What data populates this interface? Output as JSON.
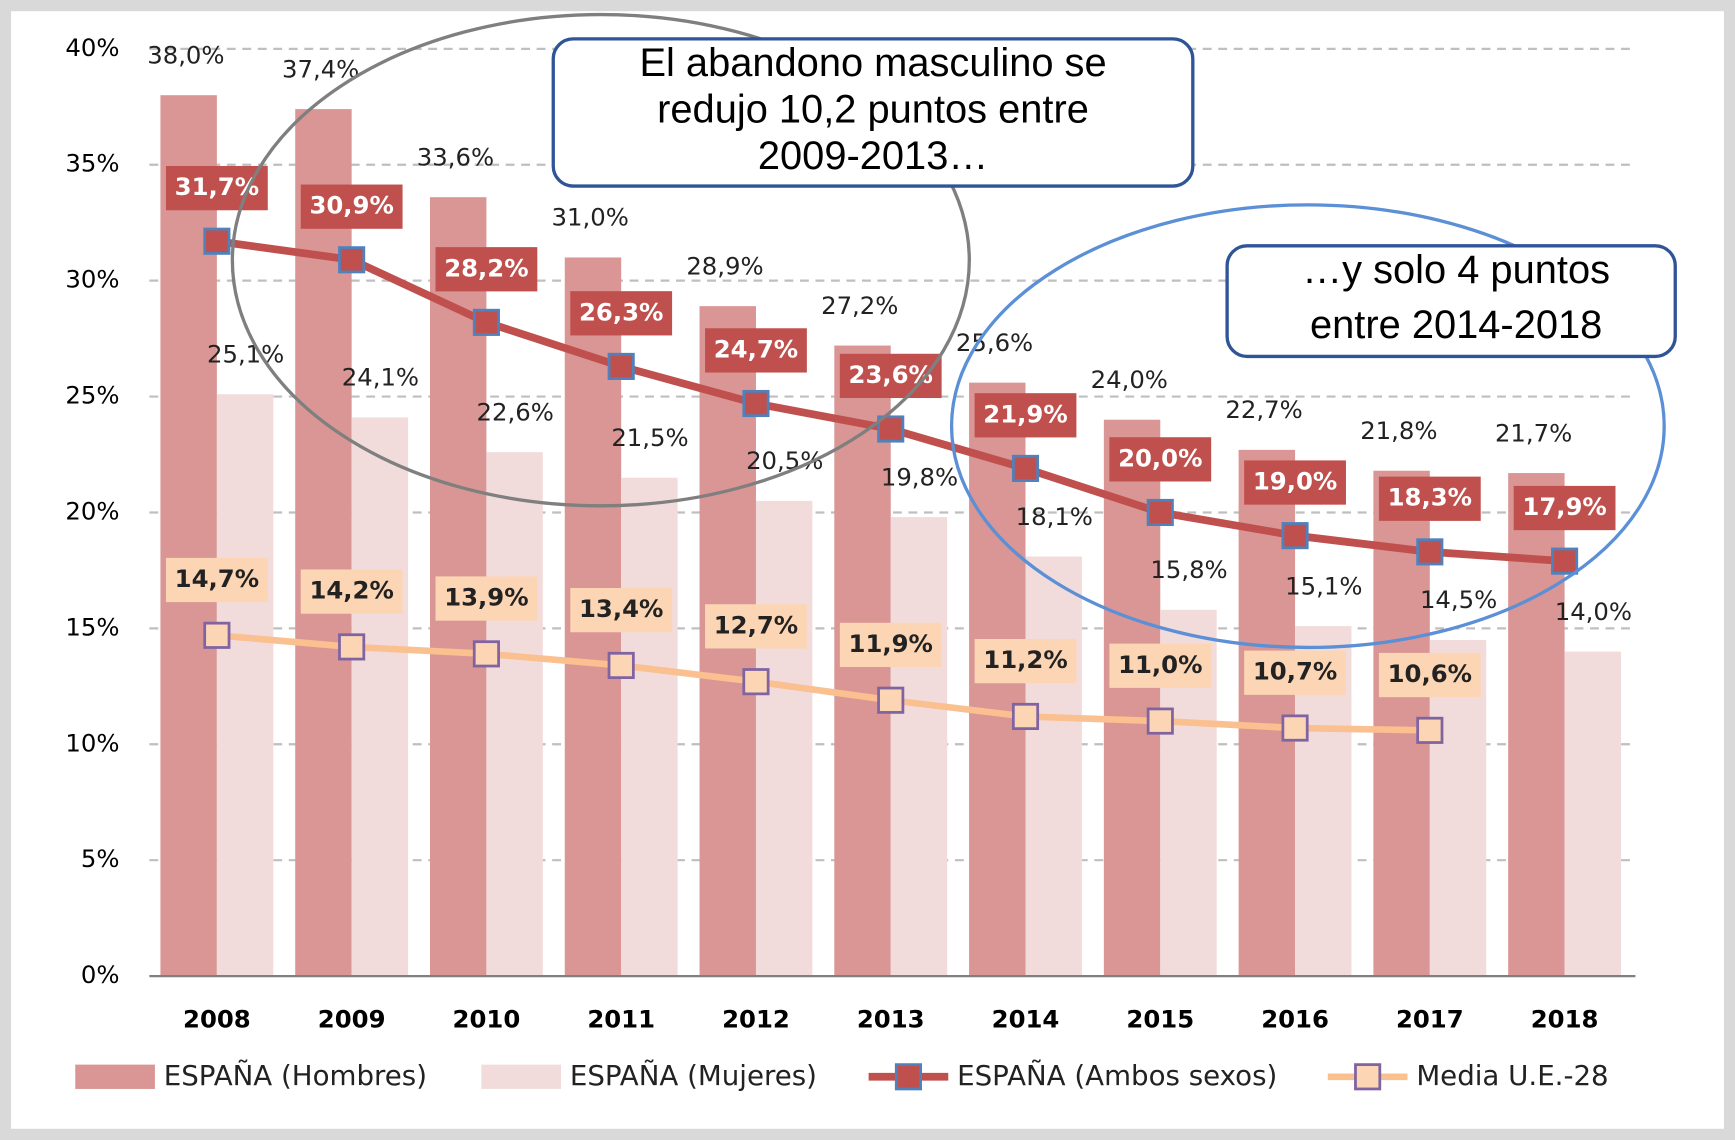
{
  "chart_data": {
    "type": "bar_line",
    "categories": [
      "2008",
      "2009",
      "2010",
      "2011",
      "2012",
      "2013",
      "2014",
      "2015",
      "2016",
      "2017",
      "2018"
    ],
    "series": [
      {
        "name": "ESPAÑA (Hombres)",
        "kind": "bar",
        "color": "#d99694",
        "values": [
          38.0,
          37.4,
          33.6,
          31.0,
          28.9,
          27.2,
          25.6,
          24.0,
          22.7,
          21.8,
          21.7
        ],
        "value_labels": [
          "38,0%",
          "37,4%",
          "33,6%",
          "31,0%",
          "28,9%",
          "27,2%",
          "25,6%",
          "24,0%",
          "22,7%",
          "21,8%",
          "21,7%"
        ]
      },
      {
        "name": "ESPAÑA (Mujeres)",
        "kind": "bar",
        "color": "#f2dcdb",
        "values": [
          25.1,
          24.1,
          22.6,
          21.5,
          20.5,
          19.8,
          18.1,
          15.8,
          15.1,
          14.5,
          14.0
        ],
        "value_labels": [
          "25,1%",
          "24,1%",
          "22,6%",
          "21,5%",
          "20,5%",
          "19,8%",
          "18,1%",
          "15,8%",
          "15,1%",
          "14,5%",
          "14,0%"
        ]
      },
      {
        "name": "ESPAÑA (Ambos sexos)",
        "kind": "line",
        "color": "#c0504d",
        "values": [
          31.7,
          30.9,
          28.2,
          26.3,
          24.7,
          23.6,
          21.9,
          20.0,
          19.0,
          18.3,
          17.9
        ],
        "value_labels": [
          "31,7%",
          "30,9%",
          "28,2%",
          "26,3%",
          "24,7%",
          "23,6%",
          "21,9%",
          "20,0%",
          "19,0%",
          "18,3%",
          "17,9%"
        ]
      },
      {
        "name": "Media U.E.-28",
        "kind": "line",
        "color": "#fac090",
        "values": [
          14.7,
          14.2,
          13.9,
          13.4,
          12.7,
          11.9,
          11.2,
          11.0,
          10.7,
          10.6,
          null
        ],
        "value_labels": [
          "14,7%",
          "14,2%",
          "13,9%",
          "13,4%",
          "12,7%",
          "11,9%",
          "11,2%",
          "11,0%",
          "10,7%",
          "10,6%",
          null
        ]
      }
    ],
    "ylim": [
      0,
      40
    ],
    "yticks": [
      {
        "value": 0,
        "label": "0%"
      },
      {
        "value": 5,
        "label": "5%"
      },
      {
        "value": 10,
        "label": "10%"
      },
      {
        "value": 15,
        "label": "15%"
      },
      {
        "value": 20,
        "label": "20%"
      },
      {
        "value": 25,
        "label": "25%"
      },
      {
        "value": 30,
        "label": "30%"
      },
      {
        "value": 35,
        "label": "35%"
      },
      {
        "value": 40,
        "label": "40%"
      }
    ],
    "grid": true,
    "legend": "bottom",
    "annotations": [
      [
        "El abandono masculino se",
        "redujo 10,2 puntos entre",
        "2009-2013…"
      ],
      [
        "…y solo 4 puntos",
        "entre 2014-2018"
      ]
    ]
  }
}
